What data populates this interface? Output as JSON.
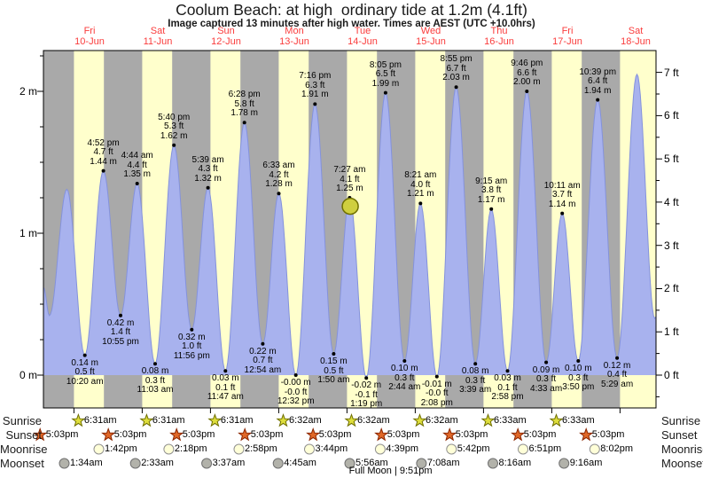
{
  "header": {
    "title": "Coolum Beach: at high  ordinary tide at 1.2m (4.1ft)",
    "subtitle": "Image captured 13 minutes after high water. Times are AEST (UTC +10.0hrs)"
  },
  "days": [
    {
      "label": "Fri",
      "date": "10-Jun"
    },
    {
      "label": "Sat",
      "date": "11-Jun"
    },
    {
      "label": "Sun",
      "date": "12-Jun"
    },
    {
      "label": "Mon",
      "date": "13-Jun"
    },
    {
      "label": "Tue",
      "date": "14-Jun"
    },
    {
      "label": "Wed",
      "date": "15-Jun"
    },
    {
      "label": "Thu",
      "date": "16-Jun"
    },
    {
      "label": "Fri",
      "date": "17-Jun"
    },
    {
      "label": "Sat",
      "date": "18-Jun"
    }
  ],
  "axes": {
    "left": [
      {
        "value": 0,
        "text": "0 m"
      },
      {
        "value": 1,
        "text": "1 m"
      },
      {
        "value": 2,
        "text": "2 m"
      }
    ],
    "right": [
      {
        "value": 0,
        "text": "0 ft"
      },
      {
        "value": 1,
        "text": "1 ft"
      },
      {
        "value": 2,
        "text": "2 ft"
      },
      {
        "value": 3,
        "text": "3 ft"
      },
      {
        "value": 4,
        "text": "4 ft"
      },
      {
        "value": 5,
        "text": "5 ft"
      },
      {
        "value": 6,
        "text": "6 ft"
      },
      {
        "value": 7,
        "text": "7 ft"
      }
    ]
  },
  "chart_data": {
    "type": "area",
    "x_unit": "days since Fri 10-Jun 00:00 AEST",
    "y_unit": "m",
    "ylim_m": [
      -0.23,
      2.29
    ],
    "events": [
      {
        "t": 0.4306,
        "h": 0.14,
        "type": "low",
        "lines": [
          "0.14 m",
          "0.5 ft",
          "10:20 am"
        ]
      },
      {
        "t": 0.7028,
        "h": 1.44,
        "type": "high",
        "lines": [
          "4:52 pm",
          "4.7 ft",
          "1.44 m"
        ]
      },
      {
        "t": 0.9549,
        "h": 0.42,
        "type": "low",
        "lines": [
          "0.42 m",
          "1.4 ft",
          "10:55 pm"
        ]
      },
      {
        "t": 1.1972,
        "h": 1.35,
        "type": "high",
        "lines": [
          "4:44 am",
          "4.4 ft",
          "1.35 m"
        ]
      },
      {
        "t": 1.4604,
        "h": 0.08,
        "type": "low",
        "lines": [
          "0.08 m",
          "0.3 ft",
          "11:03 am"
        ]
      },
      {
        "t": 1.7361,
        "h": 1.62,
        "type": "high",
        "lines": [
          "5:40 pm",
          "5.3 ft",
          "1.62 m"
        ]
      },
      {
        "t": 1.9972,
        "h": 0.32,
        "type": "low",
        "lines": [
          "0.32 m",
          "1.0 ft",
          "11:56 pm"
        ]
      },
      {
        "t": 2.2354,
        "h": 1.32,
        "type": "high",
        "lines": [
          "5:39 am",
          "4.3 ft",
          "1.32 m"
        ]
      },
      {
        "t": 2.491,
        "h": 0.03,
        "type": "low",
        "lines": [
          "0.03 m",
          "0.1 ft",
          "11:47 am"
        ]
      },
      {
        "t": 2.7694,
        "h": 1.78,
        "type": "high",
        "lines": [
          "6:28 pm",
          "5.8 ft",
          "1.78 m"
        ]
      },
      {
        "t": 3.0375,
        "h": 0.22,
        "type": "low",
        "lines": [
          "0.22 m",
          "0.7 ft",
          "12:54 am"
        ]
      },
      {
        "t": 3.2729,
        "h": 1.28,
        "type": "high",
        "lines": [
          "6:33 am",
          "4.2 ft",
          "1.28 m"
        ]
      },
      {
        "t": 3.5222,
        "h": 0.0,
        "type": "low",
        "lines": [
          "-0.00 m",
          "-0.0 ft",
          "12:32 pm"
        ]
      },
      {
        "t": 3.8028,
        "h": 1.91,
        "type": "high",
        "lines": [
          "7:16 pm",
          "6.3 ft",
          "1.91 m"
        ]
      },
      {
        "t": 4.0764,
        "h": 0.15,
        "type": "low",
        "lines": [
          "0.15 m",
          "0.5 ft",
          "1:50 am"
        ]
      },
      {
        "t": 4.3104,
        "h": 1.25,
        "type": "high",
        "lines": [
          "7:27 am",
          "4.1 ft",
          "1.25 m"
        ]
      },
      {
        "t": 4.5549,
        "h": -0.02,
        "type": "low",
        "lines": [
          "-0.02 m",
          "-0.1 ft",
          "1:19 pm"
        ]
      },
      {
        "t": 4.8368,
        "h": 1.99,
        "type": "high",
        "lines": [
          "8:05 pm",
          "6.5 ft",
          "1.99 m"
        ]
      },
      {
        "t": 5.1139,
        "h": 0.1,
        "type": "low",
        "lines": [
          "0.10 m",
          "0.3 ft",
          "2:44 am"
        ]
      },
      {
        "t": 5.3479,
        "h": 1.21,
        "type": "high",
        "lines": [
          "8:21 am",
          "4.0 ft",
          "1.21 m"
        ]
      },
      {
        "t": 5.5889,
        "h": -0.01,
        "type": "low",
        "lines": [
          "-0.01 m",
          "-0.0 ft",
          "2:08 pm"
        ]
      },
      {
        "t": 5.8715,
        "h": 2.03,
        "type": "high",
        "lines": [
          "8:55 pm",
          "6.7 ft",
          "2.03 m"
        ]
      },
      {
        "t": 6.1521,
        "h": 0.08,
        "type": "low",
        "lines": [
          "0.08 m",
          "0.3 ft",
          "3:39 am"
        ]
      },
      {
        "t": 6.3854,
        "h": 1.17,
        "type": "high",
        "lines": [
          "9:15 am",
          "3.8 ft",
          "1.17 m"
        ]
      },
      {
        "t": 6.6236,
        "h": 0.03,
        "type": "low",
        "lines": [
          "0.03 m",
          "0.1 ft",
          "2:58 pm"
        ]
      },
      {
        "t": 6.9069,
        "h": 2.0,
        "type": "high",
        "lines": [
          "9:46 pm",
          "6.6 ft",
          "2.00 m"
        ]
      },
      {
        "t": 7.1896,
        "h": 0.09,
        "type": "low",
        "lines": [
          "0.09 m",
          "0.3 ft",
          "4:33 am"
        ]
      },
      {
        "t": 7.4243,
        "h": 1.14,
        "type": "high",
        "lines": [
          "10:11 am",
          "3.7 ft",
          "1.14 m"
        ]
      },
      {
        "t": 7.6597,
        "h": 0.1,
        "type": "low",
        "lines": [
          "0.10 m",
          "0.3 ft",
          "3:50 pm"
        ]
      },
      {
        "t": 7.9438,
        "h": 1.94,
        "type": "high",
        "lines": [
          "10:39 pm",
          "6.4 ft",
          "1.94 m"
        ]
      },
      {
        "t": 8.2285,
        "h": 0.12,
        "type": "low",
        "lines": [
          "0.12 m",
          "0.4 ft",
          "5:29 am"
        ]
      }
    ],
    "curve_edge_points": {
      "pre": [
        {
          "t": -0.175,
          "h": 0.62
        },
        {
          "t": -0.088,
          "h": 0.42
        },
        {
          "t": 0.168,
          "h": 1.31
        }
      ],
      "post": [
        {
          "t": 8.52,
          "h": 2.12
        },
        {
          "t": 8.78,
          "h": 0.4
        },
        {
          "t": 9.0,
          "h": 1.2
        }
      ]
    },
    "current_time_marker": {
      "t": 4.3194,
      "h": 1.19
    }
  },
  "astro": {
    "rows": [
      {
        "id": "sunrise",
        "label": "Sunrise",
        "entries": [
          {
            "t": 0.2715,
            "time": "6:31am"
          },
          {
            "t": 1.2715,
            "time": "6:31am"
          },
          {
            "t": 2.2715,
            "time": "6:31am"
          },
          {
            "t": 3.2722,
            "time": "6:32am"
          },
          {
            "t": 4.2722,
            "time": "6:32am"
          },
          {
            "t": 5.2722,
            "time": "6:32am"
          },
          {
            "t": 6.2729,
            "time": "6:33am"
          },
          {
            "t": 7.2729,
            "time": "6:33am"
          }
        ]
      },
      {
        "id": "sunset",
        "label": "Sunset",
        "entries": [
          {
            "t": -0.2896,
            "time": "5:03pm"
          },
          {
            "t": 0.7104,
            "time": "5:03pm"
          },
          {
            "t": 1.7104,
            "time": "5:03pm"
          },
          {
            "t": 2.7104,
            "time": "5:03pm"
          },
          {
            "t": 3.7104,
            "time": "5:03pm"
          },
          {
            "t": 4.7104,
            "time": "5:03pm"
          },
          {
            "t": 5.7104,
            "time": "5:03pm"
          },
          {
            "t": 6.7104,
            "time": "5:03pm"
          },
          {
            "t": 7.7104,
            "time": "5:03pm"
          }
        ]
      },
      {
        "id": "moonrise",
        "label": "Moonrise",
        "entries": [
          {
            "t": 0.5708,
            "time": "1:42pm"
          },
          {
            "t": 1.5958,
            "time": "2:18pm"
          },
          {
            "t": 2.6236,
            "time": "2:58pm"
          },
          {
            "t": 3.6556,
            "time": "3:44pm"
          },
          {
            "t": 4.6938,
            "time": "4:39pm"
          },
          {
            "t": 5.7375,
            "time": "5:42pm"
          },
          {
            "t": 6.7854,
            "time": "6:51pm"
          },
          {
            "t": 7.8347,
            "time": "8:02pm"
          }
        ]
      },
      {
        "id": "moonset",
        "label": "Moonset",
        "entries": [
          {
            "t": 0.0653,
            "time": "1:34am"
          },
          {
            "t": 1.1063,
            "time": "2:33am"
          },
          {
            "t": 2.1507,
            "time": "3:37am"
          },
          {
            "t": 3.1979,
            "time": "4:45am"
          },
          {
            "t": 4.2472,
            "time": "5:56am"
          },
          {
            "t": 5.2972,
            "time": "7:08am"
          },
          {
            "t": 6.3444,
            "time": "8:16am"
          },
          {
            "t": 7.3861,
            "time": "9:16am"
          }
        ]
      }
    ],
    "moon_phase": "Full Moon | 9:51pm",
    "moon_phase_t": 4.9104
  },
  "colors": {
    "day_band": "#FFFFCC",
    "night_band": "#A9A9A9",
    "tide_fill": "#A8B2EE",
    "tide_stroke": "#8492DC",
    "day_label": "#FA3C3C",
    "marker_fill": "#CFCF3F",
    "marker_stroke": "#6F6F00",
    "sunrise_star_fill": "#DEDE3C",
    "sunrise_star_stroke": "#6F6F00",
    "sunset_star_fill": "#E06828",
    "sunset_star_stroke": "#8B2500",
    "moonrise_fill": "#FFFFD8",
    "moonrise_stroke": "#909090",
    "moonset_fill": "#B2B2AA",
    "moonset_stroke": "#707070"
  }
}
